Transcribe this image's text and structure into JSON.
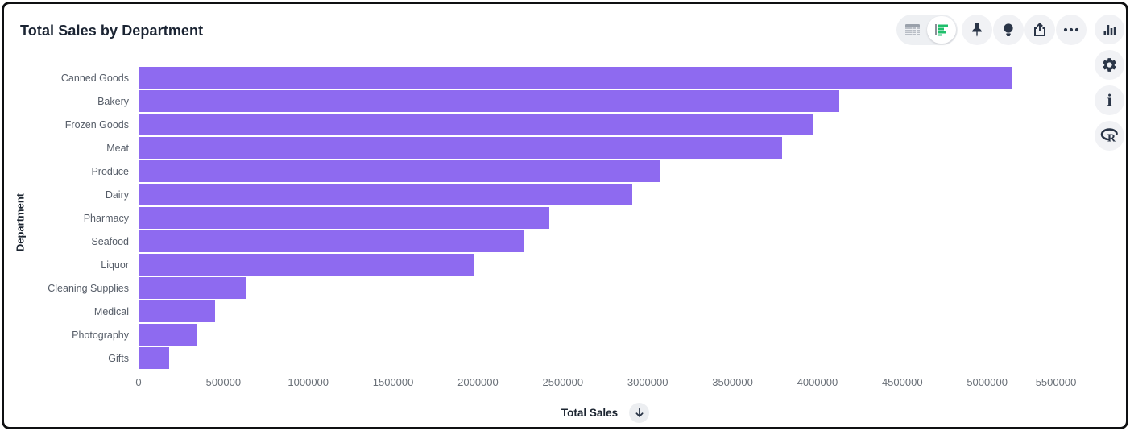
{
  "header": {
    "title": "Total Sales by Department"
  },
  "toolbar": {
    "view_toggle": {
      "options": [
        "table-view",
        "chart-view"
      ],
      "active": "chart-view"
    },
    "buttons": [
      {
        "name": "pin"
      },
      {
        "name": "lightbulb"
      },
      {
        "name": "share"
      },
      {
        "name": "more-options"
      }
    ]
  },
  "side_toolbar": {
    "buttons": [
      {
        "name": "column-chart"
      },
      {
        "name": "settings"
      },
      {
        "name": "info"
      },
      {
        "name": "r-logo"
      }
    ]
  },
  "x_axis": {
    "sort_button": "arrow-down"
  },
  "colors": {
    "bar": "#8E6AF0",
    "accent_green": "#1FBF6B",
    "icon_dark": "#2A3547",
    "title_text": "#1B2433",
    "axis_text": "#6A7078",
    "category_text": "#565D68",
    "button_bg": "#F1F2F5"
  },
  "chart_data": {
    "type": "bar",
    "orientation": "horizontal",
    "title": "Total Sales by Department",
    "xlabel": "Total Sales",
    "ylabel": "Department",
    "categories": [
      "Canned Goods",
      "Bakery",
      "Frozen Goods",
      "Meat",
      "Produce",
      "Dairy",
      "Pharmacy",
      "Seafood",
      "Liquor",
      "Cleaning Supplies",
      "Medical",
      "Photography",
      "Gifts"
    ],
    "values": [
      5150000,
      4130000,
      3970000,
      3790000,
      3070000,
      2910000,
      2420000,
      2270000,
      1980000,
      630000,
      450000,
      340000,
      180000
    ],
    "xlim": [
      0,
      5500000
    ],
    "xticks": [
      0,
      500000,
      1000000,
      1500000,
      2000000,
      2500000,
      3000000,
      3500000,
      4000000,
      4500000,
      5000000,
      5500000
    ],
    "bar_color": "#8E6AF0",
    "grid": false,
    "legend": false,
    "sort": "descending"
  }
}
